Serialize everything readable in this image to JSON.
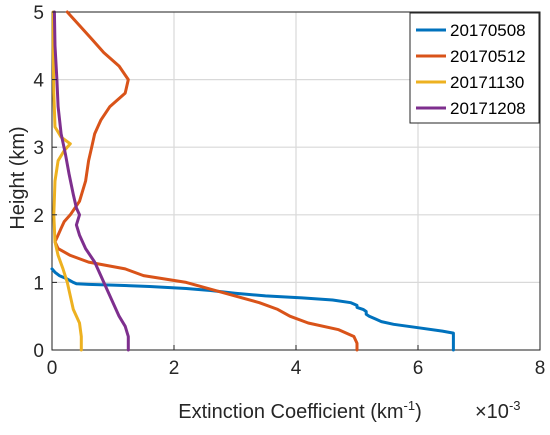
{
  "chart_data": {
    "type": "line",
    "xlabel": "Extinction Coefficient (km",
    "xlabel_sup": "-1",
    "xlabel_end": ")",
    "x_multiplier": "×10",
    "x_multiplier_exp": "-3",
    "ylabel": "Height (km)",
    "xlim": [
      0,
      8
    ],
    "ylim": [
      0,
      5
    ],
    "xticks": [
      0,
      2,
      4,
      6,
      8
    ],
    "yticks": [
      0,
      1,
      2,
      3,
      4,
      5
    ],
    "x_tick_labels": [
      "0",
      "2",
      "4",
      "6",
      "8"
    ],
    "y_tick_labels": [
      "0",
      "1",
      "2",
      "3",
      "4",
      "5"
    ],
    "grid": true,
    "legend_position": "top-right",
    "series": [
      {
        "name": "20170508",
        "color": "#0072BD",
        "points": [
          [
            6.58,
            0
          ],
          [
            6.58,
            0.25
          ],
          [
            6.4,
            0.28
          ],
          [
            6.0,
            0.33
          ],
          [
            5.6,
            0.38
          ],
          [
            5.4,
            0.42
          ],
          [
            5.3,
            0.46
          ],
          [
            5.2,
            0.5
          ],
          [
            5.15,
            0.53
          ],
          [
            5.15,
            0.57
          ],
          [
            5.1,
            0.6
          ],
          [
            5.0,
            0.63
          ],
          [
            5.0,
            0.66
          ],
          [
            4.9,
            0.7
          ],
          [
            4.6,
            0.74
          ],
          [
            4.1,
            0.77
          ],
          [
            3.5,
            0.8
          ],
          [
            3.0,
            0.84
          ],
          [
            2.6,
            0.88
          ],
          [
            2.2,
            0.91
          ],
          [
            1.6,
            0.94
          ],
          [
            1.0,
            0.96
          ],
          [
            0.6,
            0.97
          ],
          [
            0.4,
            0.98
          ],
          [
            0.35,
            1.0
          ],
          [
            0.25,
            1.05
          ],
          [
            0.12,
            1.1
          ],
          [
            0.05,
            1.15
          ],
          [
            0,
            1.2
          ]
        ]
      },
      {
        "name": "20170512",
        "color": "#D95319",
        "points": [
          [
            5.0,
            0
          ],
          [
            5.0,
            0.1
          ],
          [
            4.95,
            0.2
          ],
          [
            4.7,
            0.3
          ],
          [
            4.2,
            0.4
          ],
          [
            3.9,
            0.5
          ],
          [
            3.7,
            0.6
          ],
          [
            3.4,
            0.7
          ],
          [
            3.0,
            0.8
          ],
          [
            2.6,
            0.9
          ],
          [
            2.2,
            1.0
          ],
          [
            1.5,
            1.1
          ],
          [
            1.2,
            1.2
          ],
          [
            0.6,
            1.3
          ],
          [
            0.3,
            1.4
          ],
          [
            0.1,
            1.5
          ],
          [
            0.05,
            1.6
          ],
          [
            0.1,
            1.7
          ],
          [
            0.15,
            1.8
          ],
          [
            0.2,
            1.9
          ],
          [
            0.3,
            2.0
          ],
          [
            0.45,
            2.2
          ],
          [
            0.55,
            2.5
          ],
          [
            0.6,
            2.8
          ],
          [
            0.65,
            3.0
          ],
          [
            0.7,
            3.2
          ],
          [
            0.8,
            3.4
          ],
          [
            0.95,
            3.6
          ],
          [
            1.2,
            3.8
          ],
          [
            1.25,
            4.0
          ],
          [
            1.1,
            4.2
          ],
          [
            0.85,
            4.4
          ],
          [
            0.65,
            4.6
          ],
          [
            0.45,
            4.8
          ],
          [
            0.3,
            4.95
          ],
          [
            0.25,
            5.0
          ]
        ]
      },
      {
        "name": "20171130",
        "color": "#EDB120",
        "points": [
          [
            0.48,
            0
          ],
          [
            0.48,
            0.2
          ],
          [
            0.45,
            0.4
          ],
          [
            0.35,
            0.6
          ],
          [
            0.3,
            0.8
          ],
          [
            0.25,
            1.0
          ],
          [
            0.18,
            1.2
          ],
          [
            0.1,
            1.4
          ],
          [
            0.05,
            1.6
          ],
          [
            0.03,
            2.0
          ],
          [
            0.05,
            2.5
          ],
          [
            0.1,
            2.8
          ],
          [
            0.2,
            2.95
          ],
          [
            0.3,
            3.05
          ],
          [
            0.15,
            3.15
          ],
          [
            0.05,
            3.3
          ],
          [
            0.03,
            3.8
          ],
          [
            0.02,
            4.5
          ],
          [
            0.02,
            5.0
          ]
        ]
      },
      {
        "name": "20171208",
        "color": "#7E2F8E",
        "points": [
          [
            1.25,
            0
          ],
          [
            1.25,
            0.2
          ],
          [
            1.2,
            0.35
          ],
          [
            1.1,
            0.5
          ],
          [
            1.0,
            0.7
          ],
          [
            0.9,
            0.9
          ],
          [
            0.8,
            1.1
          ],
          [
            0.7,
            1.3
          ],
          [
            0.55,
            1.5
          ],
          [
            0.45,
            1.7
          ],
          [
            0.4,
            1.85
          ],
          [
            0.45,
            2.0
          ],
          [
            0.4,
            2.1
          ],
          [
            0.35,
            2.3
          ],
          [
            0.28,
            2.6
          ],
          [
            0.22,
            2.9
          ],
          [
            0.15,
            3.2
          ],
          [
            0.1,
            3.6
          ],
          [
            0.08,
            4.0
          ],
          [
            0.05,
            4.5
          ],
          [
            0.04,
            5.0
          ]
        ]
      }
    ]
  }
}
